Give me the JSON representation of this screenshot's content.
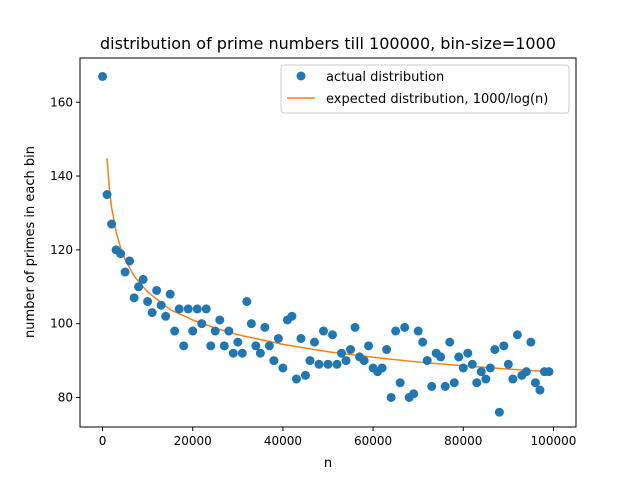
{
  "chart_data": {
    "type": "scatter",
    "title": "distribution of prime numbers till 100000, bin-size=1000",
    "xlabel": "n",
    "ylabel": "number of primes in each bin",
    "xlim": [
      -5000,
      105000
    ],
    "ylim": [
      72,
      172
    ],
    "xticks": [
      0,
      20000,
      40000,
      60000,
      80000,
      100000
    ],
    "yticks": [
      80,
      100,
      120,
      140,
      160
    ],
    "legend_position": "upper-right",
    "grid": false,
    "colors": {
      "scatter": "#1f77b4",
      "line": "#ff7f0e",
      "axes": "#000000"
    },
    "series": [
      {
        "name": "actual distribution",
        "kind": "scatter",
        "x": [
          0,
          1000,
          2000,
          3000,
          4000,
          5000,
          6000,
          7000,
          8000,
          9000,
          10000,
          11000,
          12000,
          13000,
          14000,
          15000,
          16000,
          17000,
          18000,
          19000,
          20000,
          21000,
          22000,
          23000,
          24000,
          25000,
          26000,
          27000,
          28000,
          29000,
          30000,
          31000,
          32000,
          33000,
          34000,
          35000,
          36000,
          37000,
          38000,
          39000,
          40000,
          41000,
          42000,
          43000,
          44000,
          45000,
          46000,
          47000,
          48000,
          49000,
          50000,
          51000,
          52000,
          53000,
          54000,
          55000,
          56000,
          57000,
          58000,
          59000,
          60000,
          61000,
          62000,
          63000,
          64000,
          65000,
          66000,
          67000,
          68000,
          69000,
          70000,
          71000,
          72000,
          73000,
          74000,
          75000,
          76000,
          77000,
          78000,
          79000,
          80000,
          81000,
          82000,
          83000,
          84000,
          85000,
          86000,
          87000,
          88000,
          89000,
          90000,
          91000,
          92000,
          93000,
          94000,
          95000,
          96000,
          97000,
          98000,
          99000
        ],
        "y": [
          167,
          135,
          127,
          120,
          119,
          114,
          117,
          107,
          110,
          112,
          106,
          103,
          109,
          105,
          102,
          108,
          98,
          104,
          94,
          104,
          98,
          104,
          100,
          104,
          94,
          98,
          101,
          94,
          98,
          92,
          95,
          92,
          106,
          100,
          94,
          92,
          99,
          94,
          90,
          96,
          88,
          101,
          102,
          85,
          96,
          86,
          90,
          95,
          89,
          98,
          89,
          97,
          89,
          92,
          90,
          93,
          99,
          91,
          90,
          94,
          88,
          87,
          88,
          93,
          80,
          98,
          84,
          99,
          80,
          81,
          98,
          95,
          90,
          83,
          92,
          91,
          83,
          95,
          84,
          91,
          88,
          92,
          89,
          84,
          87,
          85,
          88,
          93,
          76,
          94,
          89,
          85,
          97,
          86,
          87,
          95,
          84,
          82,
          87,
          87
        ]
      },
      {
        "name": "expected distribution, 1000/log(n)",
        "kind": "line",
        "x": [
          1000,
          1500,
          2000,
          3000,
          4000,
          5000,
          7000,
          10000,
          15000,
          20000,
          25000,
          30000,
          40000,
          50000,
          60000,
          70000,
          80000,
          90000,
          100000
        ],
        "y": [
          144.8,
          136.7,
          131.6,
          124.9,
          120.6,
          117.4,
          112.9,
          108.6,
          103.8,
          101.0,
          98.8,
          97.0,
          94.4,
          92.4,
          90.9,
          89.6,
          88.6,
          87.7,
          86.9
        ]
      }
    ]
  }
}
